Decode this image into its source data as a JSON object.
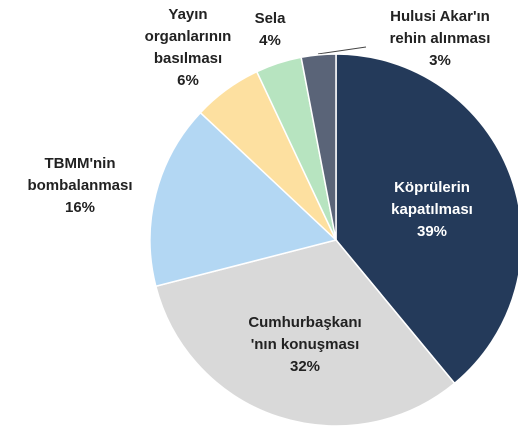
{
  "chart_data": {
    "type": "pie",
    "categories": [
      [
        "Köprülerin",
        "kapatılması"
      ],
      [
        "Cumhurbaşkanı",
        "'nın konuşması"
      ],
      [
        "TBMM'nin",
        "bombalanması"
      ],
      [
        "Yayın",
        "organlarının",
        "basılması"
      ],
      [
        "Sela"
      ],
      [
        "Hulusi Akar'ın",
        "rehin alınması"
      ]
    ],
    "values": [
      39,
      32,
      16,
      6,
      4,
      3
    ],
    "value_labels": [
      "39%",
      "32%",
      "16%",
      "6%",
      "4%",
      "3%"
    ],
    "colors": [
      "#243a5a",
      "#d9d9d9",
      "#b3d7f3",
      "#fde0a0",
      "#b7e4c0",
      "#5a6478"
    ]
  }
}
